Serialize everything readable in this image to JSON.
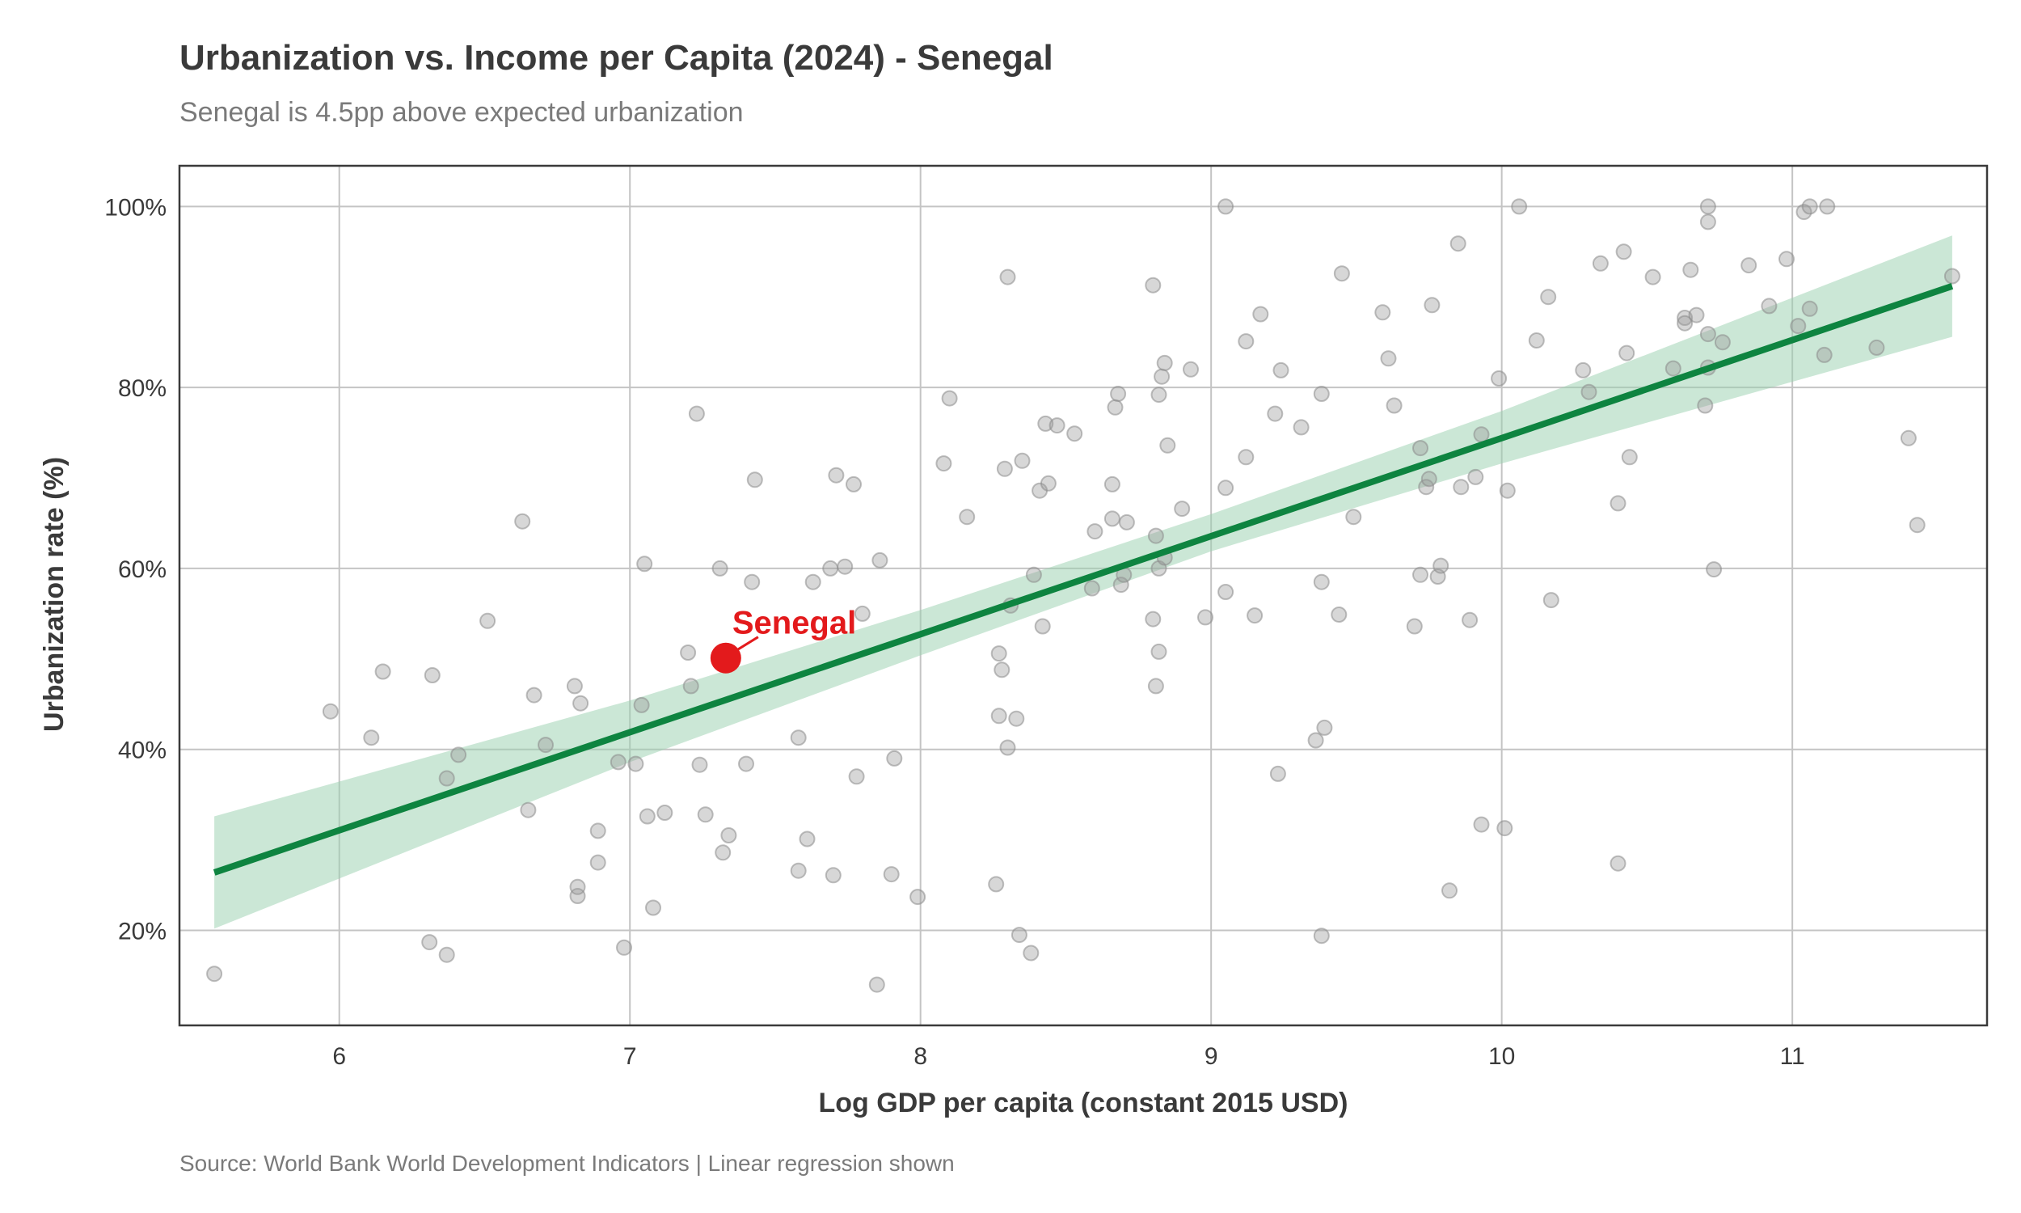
{
  "chart_data": {
    "type": "scatter",
    "title": "Urbanization vs. Income per Capita (2024) - Senegal",
    "subtitle": "Senegal is 4.5pp above expected urbanization",
    "caption": "Source: World Bank World Development Indicators | Linear regression shown",
    "xlabel": "Log GDP per capita (constant 2015 USD)",
    "ylabel": "Urbanization rate (%)",
    "xlim": [
      5.45,
      11.67
    ],
    "ylim": [
      9.5,
      104.5
    ],
    "xticks": [
      6,
      7,
      8,
      9,
      10,
      11
    ],
    "xtick_labels": [
      "6",
      "7",
      "8",
      "9",
      "10",
      "11"
    ],
    "yticks": [
      20,
      40,
      60,
      80,
      100
    ],
    "ytick_labels": [
      "20%",
      "40%",
      "60%",
      "80%",
      "100%"
    ],
    "grid": true,
    "colors": {
      "points": "#9a9a9a",
      "regression": "#0e8440",
      "confidence_band": "#97cfae",
      "highlight": "#e31a1c"
    },
    "highlight": {
      "label": "Senegal",
      "x": 7.33,
      "y": 50.1
    },
    "regression": {
      "x_start": 5.57,
      "y_start": 26.4,
      "ci_start": [
        20.2,
        32.6
      ],
      "x_end": 11.55,
      "y_end": 91.2,
      "ci_end": [
        85.6,
        96.8
      ],
      "ci_mid": [
        [
          7.0,
          38.6,
          45.4
        ],
        [
          8.0,
          50.4,
          55.4
        ],
        [
          9.0,
          61.9,
          66.0
        ],
        [
          10.0,
          71.6,
          77.4
        ]
      ]
    },
    "points": [
      [
        5.57,
        15.2
      ],
      [
        5.97,
        44.2
      ],
      [
        6.11,
        41.3
      ],
      [
        6.15,
        48.6
      ],
      [
        6.31,
        18.7
      ],
      [
        6.32,
        48.2
      ],
      [
        6.37,
        17.3
      ],
      [
        6.37,
        36.8
      ],
      [
        6.41,
        39.4
      ],
      [
        6.51,
        54.2
      ],
      [
        6.63,
        65.2
      ],
      [
        6.65,
        33.3
      ],
      [
        6.67,
        46.0
      ],
      [
        6.71,
        40.5
      ],
      [
        6.81,
        47.0
      ],
      [
        6.82,
        23.8
      ],
      [
        6.82,
        24.8
      ],
      [
        6.83,
        45.1
      ],
      [
        6.89,
        31.0
      ],
      [
        6.89,
        27.5
      ],
      [
        6.96,
        38.6
      ],
      [
        6.98,
        18.1
      ],
      [
        7.02,
        38.4
      ],
      [
        7.04,
        44.9
      ],
      [
        7.05,
        60.5
      ],
      [
        7.06,
        32.6
      ],
      [
        7.08,
        22.5
      ],
      [
        7.12,
        33.0
      ],
      [
        7.2,
        50.7
      ],
      [
        7.21,
        47.0
      ],
      [
        7.23,
        77.1
      ],
      [
        7.24,
        38.3
      ],
      [
        7.26,
        32.8
      ],
      [
        7.31,
        60.0
      ],
      [
        7.32,
        28.6
      ],
      [
        7.34,
        30.5
      ],
      [
        7.4,
        38.4
      ],
      [
        7.42,
        58.5
      ],
      [
        7.43,
        69.8
      ],
      [
        7.58,
        41.3
      ],
      [
        7.58,
        26.6
      ],
      [
        7.61,
        30.1
      ],
      [
        7.63,
        58.5
      ],
      [
        7.69,
        60.0
      ],
      [
        7.7,
        26.1
      ],
      [
        7.71,
        70.3
      ],
      [
        7.74,
        60.2
      ],
      [
        7.77,
        69.3
      ],
      [
        7.78,
        37.0
      ],
      [
        7.8,
        55.0
      ],
      [
        7.85,
        14.0
      ],
      [
        7.86,
        60.9
      ],
      [
        7.9,
        26.2
      ],
      [
        7.91,
        39.0
      ],
      [
        7.99,
        23.7
      ],
      [
        8.08,
        71.6
      ],
      [
        8.1,
        78.8
      ],
      [
        8.16,
        65.7
      ],
      [
        8.26,
        25.1
      ],
      [
        8.27,
        43.7
      ],
      [
        8.27,
        50.6
      ],
      [
        8.28,
        48.8
      ],
      [
        8.29,
        71.0
      ],
      [
        8.3,
        92.2
      ],
      [
        8.3,
        40.2
      ],
      [
        8.31,
        55.9
      ],
      [
        8.33,
        43.4
      ],
      [
        8.34,
        19.5
      ],
      [
        8.35,
        71.9
      ],
      [
        8.38,
        17.5
      ],
      [
        8.39,
        59.3
      ],
      [
        8.41,
        68.6
      ],
      [
        8.42,
        53.6
      ],
      [
        8.43,
        76.0
      ],
      [
        8.44,
        69.4
      ],
      [
        8.47,
        75.8
      ],
      [
        8.53,
        74.9
      ],
      [
        8.59,
        57.8
      ],
      [
        8.6,
        64.1
      ],
      [
        8.66,
        65.5
      ],
      [
        8.66,
        69.3
      ],
      [
        8.67,
        77.8
      ],
      [
        8.68,
        79.3
      ],
      [
        8.69,
        58.2
      ],
      [
        8.7,
        59.3
      ],
      [
        8.71,
        65.1
      ],
      [
        8.8,
        54.4
      ],
      [
        8.8,
        91.3
      ],
      [
        8.81,
        47.0
      ],
      [
        8.81,
        63.6
      ],
      [
        8.82,
        50.8
      ],
      [
        8.82,
        79.2
      ],
      [
        8.82,
        60.0
      ],
      [
        8.83,
        81.2
      ],
      [
        8.84,
        82.7
      ],
      [
        8.84,
        61.2
      ],
      [
        8.85,
        73.6
      ],
      [
        8.9,
        66.6
      ],
      [
        8.93,
        82.0
      ],
      [
        8.98,
        54.6
      ],
      [
        9.05,
        100
      ],
      [
        9.05,
        68.9
      ],
      [
        9.05,
        57.4
      ],
      [
        9.12,
        72.3
      ],
      [
        9.12,
        85.1
      ],
      [
        9.15,
        54.8
      ],
      [
        9.17,
        88.1
      ],
      [
        9.22,
        77.1
      ],
      [
        9.23,
        37.3
      ],
      [
        9.24,
        81.9
      ],
      [
        9.31,
        75.6
      ],
      [
        9.36,
        41.0
      ],
      [
        9.38,
        19.4
      ],
      [
        9.38,
        58.5
      ],
      [
        9.38,
        79.3
      ],
      [
        9.39,
        42.4
      ],
      [
        9.44,
        54.9
      ],
      [
        9.45,
        92.6
      ],
      [
        9.49,
        65.7
      ],
      [
        9.59,
        88.3
      ],
      [
        9.61,
        83.2
      ],
      [
        9.63,
        78.0
      ],
      [
        9.7,
        53.6
      ],
      [
        9.72,
        59.3
      ],
      [
        9.72,
        73.3
      ],
      [
        9.74,
        69.0
      ],
      [
        9.75,
        69.9
      ],
      [
        9.76,
        89.1
      ],
      [
        9.78,
        59.1
      ],
      [
        9.79,
        60.3
      ],
      [
        9.82,
        24.4
      ],
      [
        9.85,
        95.9
      ],
      [
        9.86,
        69.0
      ],
      [
        9.89,
        54.3
      ],
      [
        9.91,
        70.1
      ],
      [
        9.93,
        31.7
      ],
      [
        9.93,
        74.8
      ],
      [
        9.99,
        81.0
      ],
      [
        10.01,
        31.3
      ],
      [
        10.02,
        68.6
      ],
      [
        10.06,
        100
      ],
      [
        10.12,
        85.2
      ],
      [
        10.16,
        90.0
      ],
      [
        10.17,
        56.5
      ],
      [
        10.28,
        81.9
      ],
      [
        10.3,
        79.5
      ],
      [
        10.34,
        93.7
      ],
      [
        10.4,
        27.4
      ],
      [
        10.4,
        67.2
      ],
      [
        10.42,
        95.0
      ],
      [
        10.43,
        83.8
      ],
      [
        10.44,
        72.3
      ],
      [
        10.52,
        92.2
      ],
      [
        10.59,
        82.1
      ],
      [
        10.63,
        87.7
      ],
      [
        10.63,
        87.1
      ],
      [
        10.65,
        93.0
      ],
      [
        10.67,
        88.0
      ],
      [
        10.7,
        78.0
      ],
      [
        10.71,
        100
      ],
      [
        10.71,
        82.2
      ],
      [
        10.71,
        98.3
      ],
      [
        10.71,
        85.9
      ],
      [
        10.73,
        59.9
      ],
      [
        10.76,
        85.0
      ],
      [
        10.85,
        93.5
      ],
      [
        10.92,
        89.0
      ],
      [
        10.98,
        94.2
      ],
      [
        11.02,
        86.8
      ],
      [
        11.04,
        99.4
      ],
      [
        11.06,
        100
      ],
      [
        11.06,
        88.7
      ],
      [
        11.11,
        83.6
      ],
      [
        11.12,
        100
      ],
      [
        11.29,
        84.4
      ],
      [
        11.4,
        74.4
      ],
      [
        11.43,
        64.8
      ],
      [
        11.55,
        92.3
      ]
    ]
  }
}
